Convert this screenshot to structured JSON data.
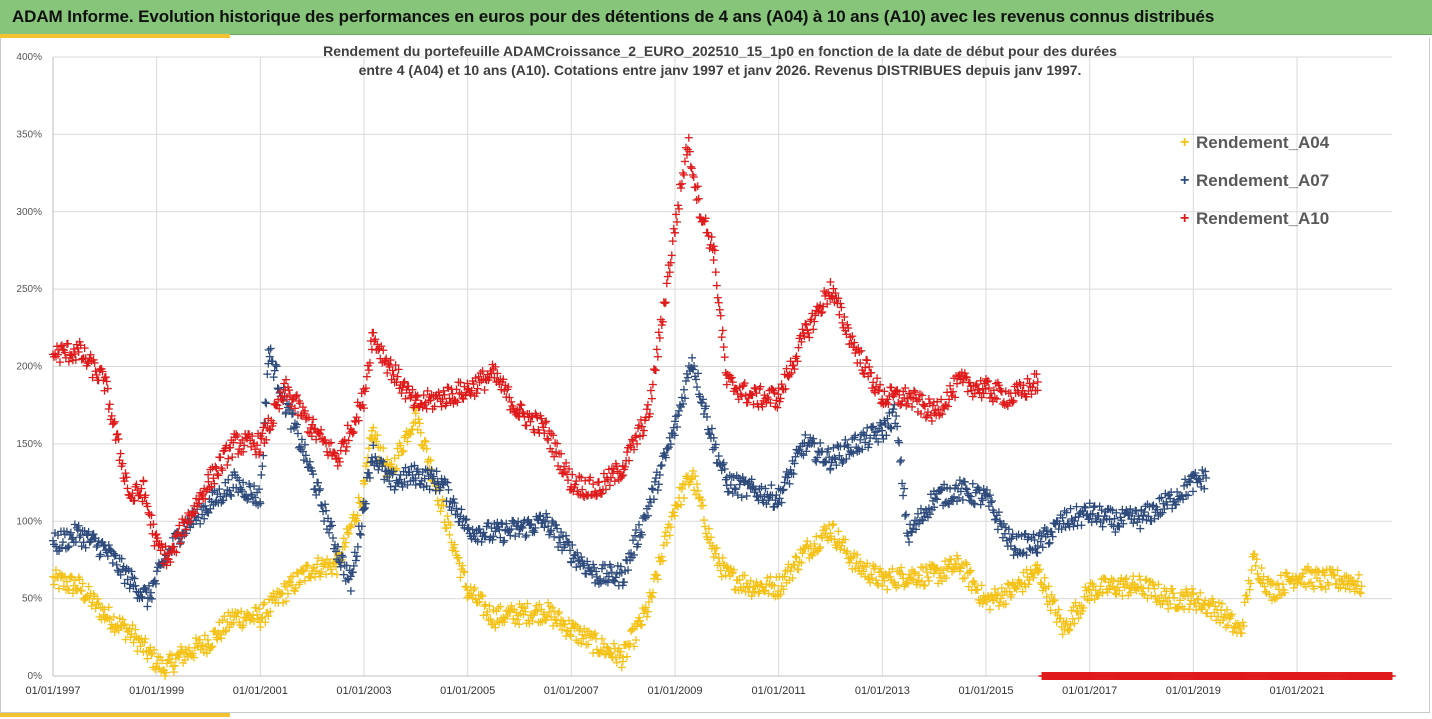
{
  "header": {
    "title": "ADAM Informe. Evolution historique des performances en euros pour des détentions de 4 ans (A04) à 10 ans (A10) avec les revenus connus distribués"
  },
  "colors": {
    "header_bg": "#86c57a",
    "accent": "#f2c230",
    "A04": "#f5c218",
    "A07": "#2e4b7c",
    "A10": "#e01b1b"
  },
  "chart_data": {
    "type": "scatter",
    "title_line1": "Rendement du portefeuille ADAMCroissance_2_EURO_202510_15_1p0  en fonction de la date de début pour des durées",
    "title_line2": "entre 4 (A04) et 10 ans (A10). Cotations entre janv 1997 et janv 2026. Revenus DISTRIBUES depuis janv 1997.",
    "xlabel": "",
    "ylabel": "",
    "y_unit": "%",
    "ylim": [
      0,
      400
    ],
    "yticks": [
      "0%",
      "50%",
      "100%",
      "150%",
      "200%",
      "250%",
      "300%",
      "350%",
      "400%"
    ],
    "xlim": [
      "1997-01-01",
      "2022-11-01"
    ],
    "xticks": [
      "01/01/1997",
      "01/01/1999",
      "01/01/2001",
      "01/01/2003",
      "01/01/2005",
      "01/01/2007",
      "01/01/2009",
      "01/01/2011",
      "01/01/2013",
      "01/01/2015",
      "01/01/2017",
      "01/01/2019",
      "01/01/2021"
    ],
    "grid": true,
    "legend_position": "top-right",
    "marker": "+",
    "series": [
      {
        "name": "Rendement_A04",
        "color": "#f5c218",
        "points": [
          [
            "1997-01",
            62
          ],
          [
            "1997-07",
            58
          ],
          [
            "1998-01",
            40
          ],
          [
            "1998-07",
            28
          ],
          [
            "1998-12",
            12
          ],
          [
            "1999-03",
            4
          ],
          [
            "1999-06",
            12
          ],
          [
            "2000-01",
            22
          ],
          [
            "2000-07",
            38
          ],
          [
            "2001-01",
            38
          ],
          [
            "2001-07",
            55
          ],
          [
            "2002-01",
            70
          ],
          [
            "2002-07",
            72
          ],
          [
            "2003-01",
            120
          ],
          [
            "2003-03",
            158
          ],
          [
            "2003-07",
            130
          ],
          [
            "2004-01",
            170
          ],
          [
            "2004-07",
            110
          ],
          [
            "2005-01",
            55
          ],
          [
            "2005-07",
            38
          ],
          [
            "2006-01",
            40
          ],
          [
            "2006-07",
            42
          ],
          [
            "2007-01",
            30
          ],
          [
            "2007-07",
            20
          ],
          [
            "2008-01",
            12
          ],
          [
            "2008-07",
            45
          ],
          [
            "2009-01",
            110
          ],
          [
            "2009-05",
            130
          ],
          [
            "2009-10",
            80
          ],
          [
            "2010-01",
            65
          ],
          [
            "2010-07",
            58
          ],
          [
            "2011-01",
            58
          ],
          [
            "2011-07",
            80
          ],
          [
            "2012-01",
            95
          ],
          [
            "2012-07",
            72
          ],
          [
            "2013-01",
            62
          ],
          [
            "2013-07",
            65
          ],
          [
            "2014-01",
            65
          ],
          [
            "2014-07",
            72
          ],
          [
            "2015-01",
            48
          ],
          [
            "2015-07",
            55
          ],
          [
            "2016-01",
            68
          ],
          [
            "2016-07",
            30
          ],
          [
            "2017-01",
            55
          ],
          [
            "2017-07",
            58
          ],
          [
            "2018-01",
            58
          ],
          [
            "2018-07",
            50
          ],
          [
            "2019-01",
            50
          ],
          [
            "2019-07",
            42
          ],
          [
            "2019-12",
            28
          ],
          [
            "2020-03",
            75
          ],
          [
            "2020-07",
            55
          ],
          [
            "2021-01",
            65
          ],
          [
            "2021-07",
            62
          ],
          [
            "2022-01",
            62
          ],
          [
            "2022-04",
            58
          ]
        ]
      },
      {
        "name": "Rendement_A07",
        "color": "#2e4b7c",
        "points": [
          [
            "1997-01",
            85
          ],
          [
            "1997-07",
            92
          ],
          [
            "1998-01",
            82
          ],
          [
            "1998-07",
            62
          ],
          [
            "1998-11",
            50
          ],
          [
            "1999-03",
            75
          ],
          [
            "1999-07",
            95
          ],
          [
            "2000-01",
            110
          ],
          [
            "2000-07",
            125
          ],
          [
            "2001-01",
            115
          ],
          [
            "2001-03",
            210
          ],
          [
            "2001-07",
            175
          ],
          [
            "2002-01",
            130
          ],
          [
            "2002-07",
            80
          ],
          [
            "2002-10",
            60
          ],
          [
            "2003-01",
            110
          ],
          [
            "2003-03",
            145
          ],
          [
            "2003-07",
            125
          ],
          [
            "2004-01",
            130
          ],
          [
            "2004-07",
            125
          ],
          [
            "2005-01",
            95
          ],
          [
            "2005-07",
            92
          ],
          [
            "2006-01",
            95
          ],
          [
            "2006-07",
            100
          ],
          [
            "2007-01",
            80
          ],
          [
            "2007-07",
            65
          ],
          [
            "2008-01",
            65
          ],
          [
            "2008-07",
            110
          ],
          [
            "2009-01",
            160
          ],
          [
            "2009-05",
            205
          ],
          [
            "2009-10",
            150
          ],
          [
            "2010-01",
            125
          ],
          [
            "2010-07",
            120
          ],
          [
            "2011-01",
            115
          ],
          [
            "2011-07",
            150
          ],
          [
            "2012-01",
            140
          ],
          [
            "2012-07",
            150
          ],
          [
            "2013-01",
            158
          ],
          [
            "2013-04",
            170
          ],
          [
            "2013-07",
            90
          ],
          [
            "2014-01",
            115
          ],
          [
            "2014-07",
            120
          ],
          [
            "2015-01",
            115
          ],
          [
            "2015-07",
            85
          ],
          [
            "2016-01",
            85
          ],
          [
            "2016-07",
            100
          ],
          [
            "2017-01",
            105
          ],
          [
            "2017-07",
            100
          ],
          [
            "2018-01",
            102
          ],
          [
            "2018-07",
            112
          ],
          [
            "2019-01",
            125
          ],
          [
            "2019-04",
            128
          ]
        ]
      },
      {
        "name": "Rendement_A10",
        "color": "#e01b1b",
        "points": [
          [
            "1997-01",
            208
          ],
          [
            "1997-07",
            210
          ],
          [
            "1998-01",
            190
          ],
          [
            "1998-04",
            150
          ],
          [
            "1998-07",
            115
          ],
          [
            "1998-10",
            120
          ],
          [
            "1999-01",
            85
          ],
          [
            "1999-04",
            75
          ],
          [
            "1999-07",
            95
          ],
          [
            "2000-01",
            125
          ],
          [
            "2000-07",
            150
          ],
          [
            "2001-01",
            150
          ],
          [
            "2001-07",
            185
          ],
          [
            "2002-01",
            160
          ],
          [
            "2002-07",
            140
          ],
          [
            "2003-01",
            180
          ],
          [
            "2003-03",
            220
          ],
          [
            "2003-07",
            200
          ],
          [
            "2004-01",
            175
          ],
          [
            "2004-07",
            180
          ],
          [
            "2005-01",
            185
          ],
          [
            "2005-07",
            195
          ],
          [
            "2006-01",
            170
          ],
          [
            "2006-07",
            160
          ],
          [
            "2007-01",
            125
          ],
          [
            "2007-07",
            120
          ],
          [
            "2008-01",
            135
          ],
          [
            "2008-07",
            170
          ],
          [
            "2009-01",
            290
          ],
          [
            "2009-04",
            345
          ],
          [
            "2009-07",
            300
          ],
          [
            "2009-10",
            275
          ],
          [
            "2010-01",
            190
          ],
          [
            "2010-07",
            180
          ],
          [
            "2011-01",
            180
          ],
          [
            "2011-07",
            220
          ],
          [
            "2012-01",
            250
          ],
          [
            "2012-07",
            210
          ],
          [
            "2013-01",
            180
          ],
          [
            "2013-07",
            180
          ],
          [
            "2014-01",
            170
          ],
          [
            "2014-07",
            190
          ],
          [
            "2015-01",
            185
          ],
          [
            "2015-07",
            180
          ],
          [
            "2016-01",
            190
          ]
        ]
      },
      {
        "name": "Rendement_A10_zero",
        "color": "#e01b1b",
        "points": [
          [
            "2016-02",
            0
          ],
          [
            "2022-11",
            0
          ]
        ]
      }
    ]
  }
}
